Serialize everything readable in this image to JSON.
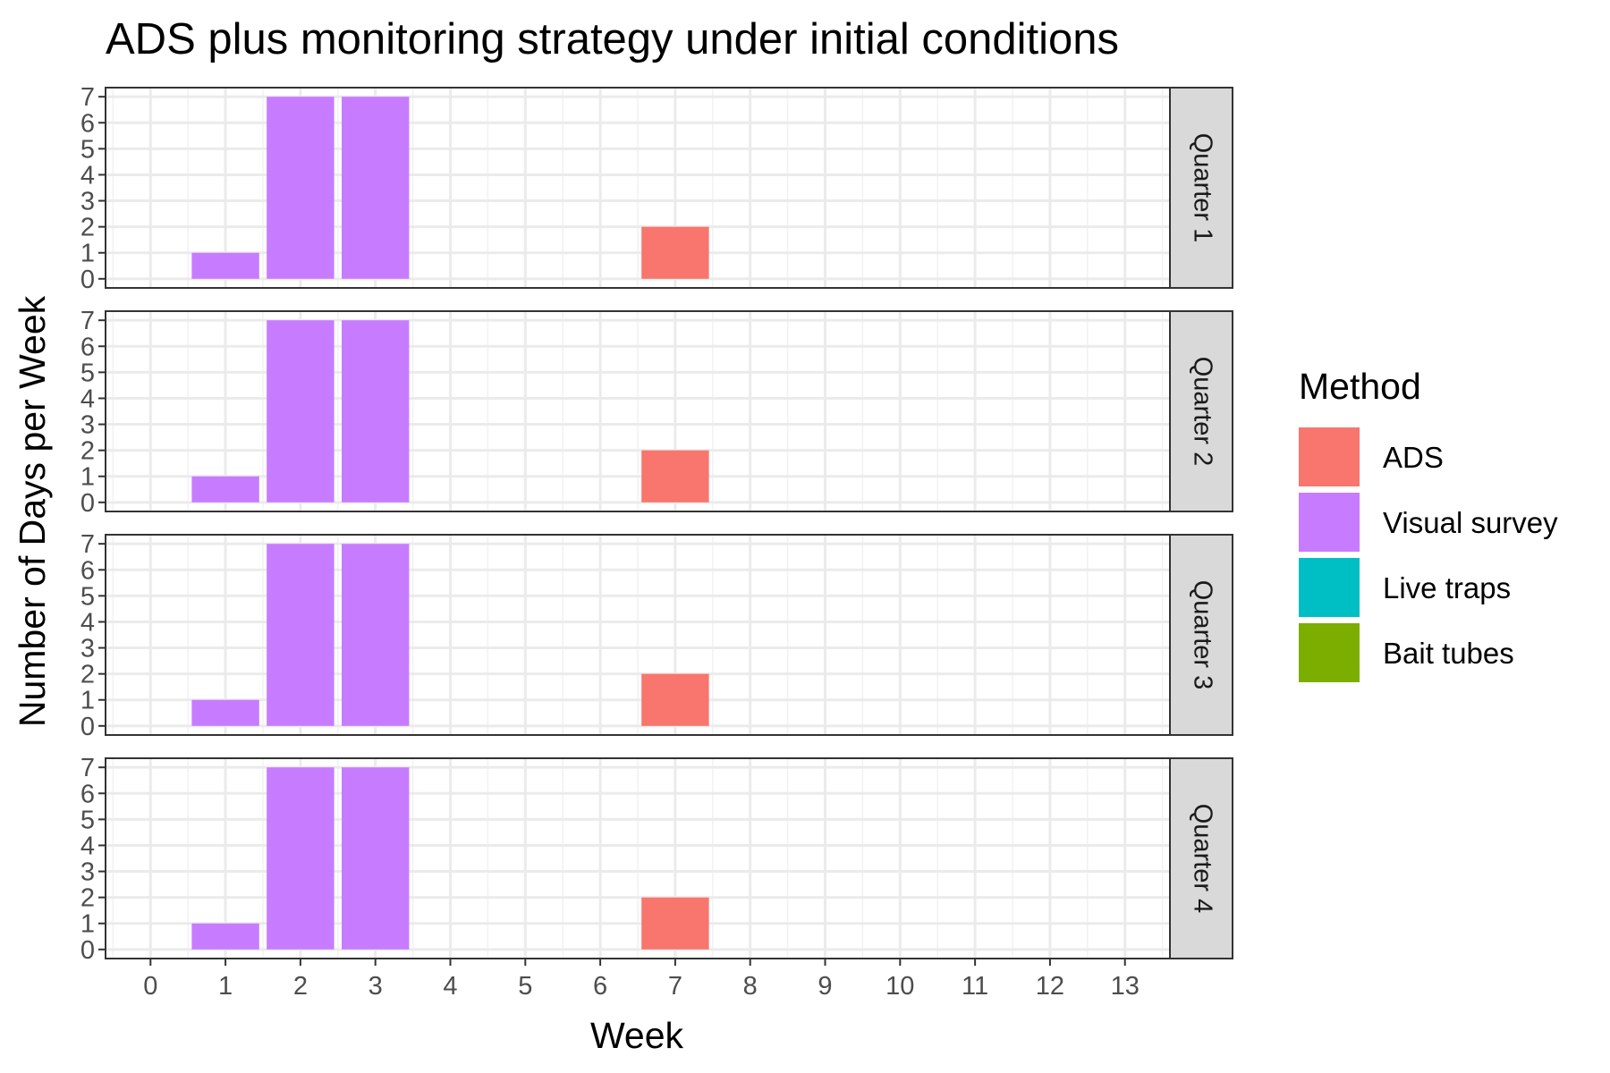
{
  "chart_data": {
    "type": "bar",
    "title": "ADS plus monitoring strategy under initial conditions",
    "xlabel": "Week",
    "ylabel": "Number of Days per Week",
    "x_ticks": [
      "0",
      "1",
      "2",
      "3",
      "4",
      "5",
      "6",
      "7",
      "8",
      "9",
      "10",
      "11",
      "12",
      "13"
    ],
    "y_ticks": [
      "0",
      "1",
      "2",
      "3",
      "4",
      "5",
      "6",
      "7"
    ],
    "xlim": [
      -0.6,
      13.6
    ],
    "ylim": [
      -0.35,
      7.35
    ],
    "grid": true,
    "legend": {
      "title": "Method",
      "position": "right",
      "entries": [
        {
          "name": "ADS",
          "color": "#F8766D"
        },
        {
          "name": "Visual survey",
          "color": "#C77CFF"
        },
        {
          "name": "Live traps",
          "color": "#00BFC4"
        },
        {
          "name": "Bait tubes",
          "color": "#7CAE00"
        }
      ]
    },
    "facets": [
      {
        "label": "Quarter 1",
        "bars": [
          {
            "week": 1,
            "value": 1,
            "method": "Visual survey"
          },
          {
            "week": 2,
            "value": 7,
            "method": "Visual survey"
          },
          {
            "week": 3,
            "value": 7,
            "method": "Visual survey"
          },
          {
            "week": 7,
            "value": 2,
            "method": "ADS"
          }
        ]
      },
      {
        "label": "Quarter 2",
        "bars": [
          {
            "week": 1,
            "value": 1,
            "method": "Visual survey"
          },
          {
            "week": 2,
            "value": 7,
            "method": "Visual survey"
          },
          {
            "week": 3,
            "value": 7,
            "method": "Visual survey"
          },
          {
            "week": 7,
            "value": 2,
            "method": "ADS"
          }
        ]
      },
      {
        "label": "Quarter 3",
        "bars": [
          {
            "week": 1,
            "value": 1,
            "method": "Visual survey"
          },
          {
            "week": 2,
            "value": 7,
            "method": "Visual survey"
          },
          {
            "week": 3,
            "value": 7,
            "method": "Visual survey"
          },
          {
            "week": 7,
            "value": 2,
            "method": "ADS"
          }
        ]
      },
      {
        "label": "Quarter 4",
        "bars": [
          {
            "week": 1,
            "value": 1,
            "method": "Visual survey"
          },
          {
            "week": 2,
            "value": 7,
            "method": "Visual survey"
          },
          {
            "week": 3,
            "value": 7,
            "method": "Visual survey"
          },
          {
            "week": 7,
            "value": 2,
            "method": "ADS"
          }
        ]
      }
    ]
  }
}
